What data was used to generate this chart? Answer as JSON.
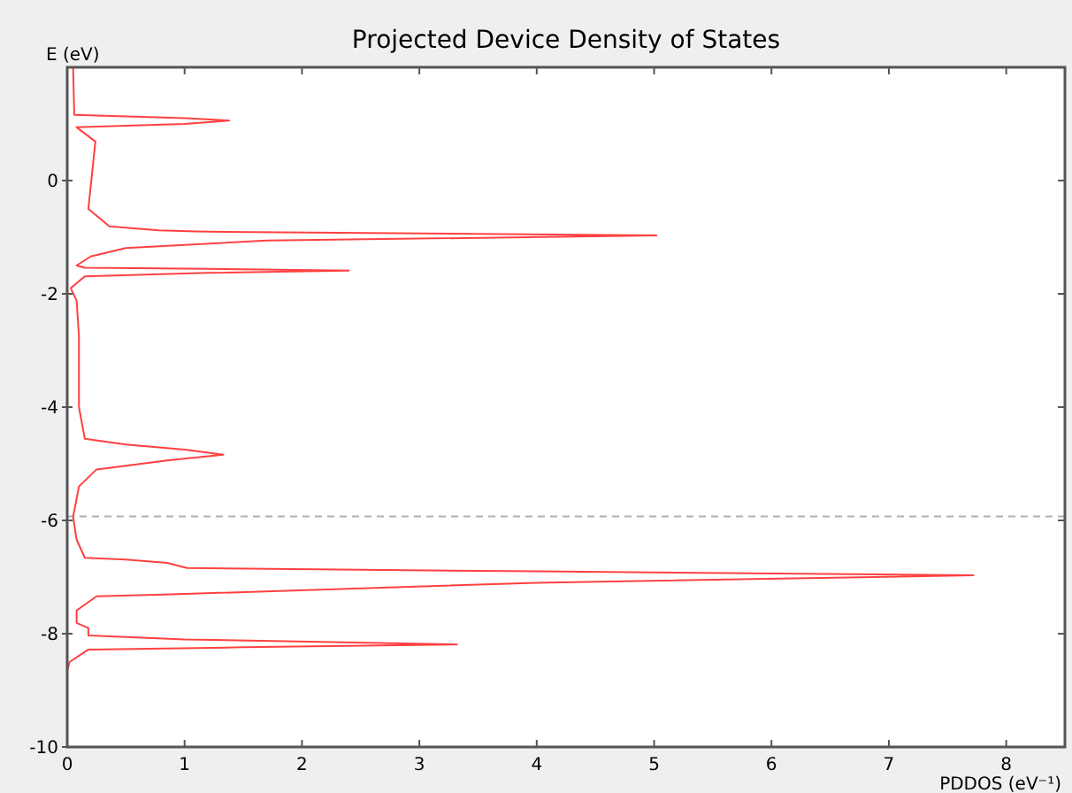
{
  "chart_data": {
    "type": "line",
    "title": "Projected Device Density of States",
    "xlabel": "PDDOS (eV⁻¹)",
    "ylabel": "E (eV)",
    "xlim": [
      0,
      8.5
    ],
    "ylim": [
      -10,
      2
    ],
    "xticks": [
      0,
      1,
      2,
      3,
      4,
      5,
      6,
      7,
      8
    ],
    "yticks": [
      -10,
      -8,
      -6,
      -4,
      -2,
      0
    ],
    "grid": false,
    "line_style": "solid",
    "marker": "none",
    "ref_lines": [
      {
        "axis": "y",
        "value": -5.93,
        "color": "#b0b0b0",
        "line_style": "dashed"
      }
    ],
    "series": [
      {
        "color": "#ff4040",
        "x": [
          0.05,
          0.06,
          1.0,
          1.38,
          1.0,
          0.08,
          0.24,
          0.18,
          0.36,
          0.78,
          1.1,
          5.02,
          1.7,
          0.5,
          0.2,
          0.08,
          0.15,
          1.2,
          2.4,
          1.2,
          0.15,
          0.03,
          0.08,
          0.1,
          0.1,
          0.15,
          0.5,
          1.0,
          1.33,
          0.85,
          0.25,
          0.1,
          0.05,
          0.08,
          0.15,
          0.5,
          0.85,
          1.02,
          4.0,
          7.72,
          4.0,
          0.83,
          0.25,
          0.08,
          0.08,
          0.18,
          0.18,
          1.0,
          3.32,
          1.5,
          0.18,
          0.02,
          0.0
        ],
        "values": [
          2.0,
          1.16,
          1.1,
          1.06,
          1.0,
          0.94,
          0.69,
          -0.5,
          -0.81,
          -0.88,
          -0.9,
          -0.97,
          -1.06,
          -1.19,
          -1.34,
          -1.5,
          -1.54,
          -1.56,
          -1.59,
          -1.63,
          -1.69,
          -1.9,
          -2.12,
          -2.75,
          -4.0,
          -4.56,
          -4.66,
          -4.75,
          -4.84,
          -4.94,
          -5.1,
          -5.4,
          -5.94,
          -6.34,
          -6.66,
          -6.69,
          -6.75,
          -6.84,
          -6.9,
          -6.97,
          -7.1,
          -7.31,
          -7.34,
          -7.59,
          -7.81,
          -7.9,
          -8.03,
          -8.1,
          -8.19,
          -8.24,
          -8.28,
          -8.5,
          -8.65
        ]
      }
    ]
  }
}
